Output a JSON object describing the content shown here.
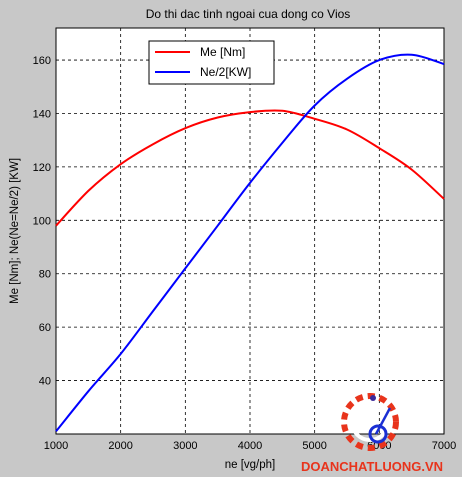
{
  "chart_data": {
    "type": "line",
    "title": "Do thi dac tinh ngoai cua dong co Vios",
    "xlabel": "ne [vg/ph]",
    "ylabel": "Me [Nm]; Ne(Ne=Ne/2) [KW]",
    "xlim": [
      1000,
      7000
    ],
    "ylim": [
      20,
      172
    ],
    "xticks": [
      1000,
      2000,
      3000,
      4000,
      5000,
      6000,
      7000
    ],
    "yticks": [
      40,
      60,
      80,
      100,
      120,
      140,
      160
    ],
    "grid": true,
    "legend_position": "top-left",
    "x": [
      1000,
      1500,
      2000,
      2500,
      3000,
      3500,
      4000,
      4500,
      5000,
      5500,
      6000,
      6500,
      7000
    ],
    "series": [
      {
        "name": "Me [Nm]",
        "color": "#ff0000",
        "values": [
          98,
          111,
          121,
          128.5,
          134.5,
          138.5,
          140.5,
          141,
          138,
          134,
          127,
          119,
          108
        ]
      },
      {
        "name": "Ne/2[KW]",
        "color": "#0000ff",
        "values": [
          21,
          36,
          50,
          66,
          82,
          98,
          114,
          129,
          143,
          153,
          160,
          162,
          158.5
        ]
      }
    ]
  },
  "watermark": {
    "text": "DOANCHATLUONG.VN",
    "color": "#e8341c"
  }
}
